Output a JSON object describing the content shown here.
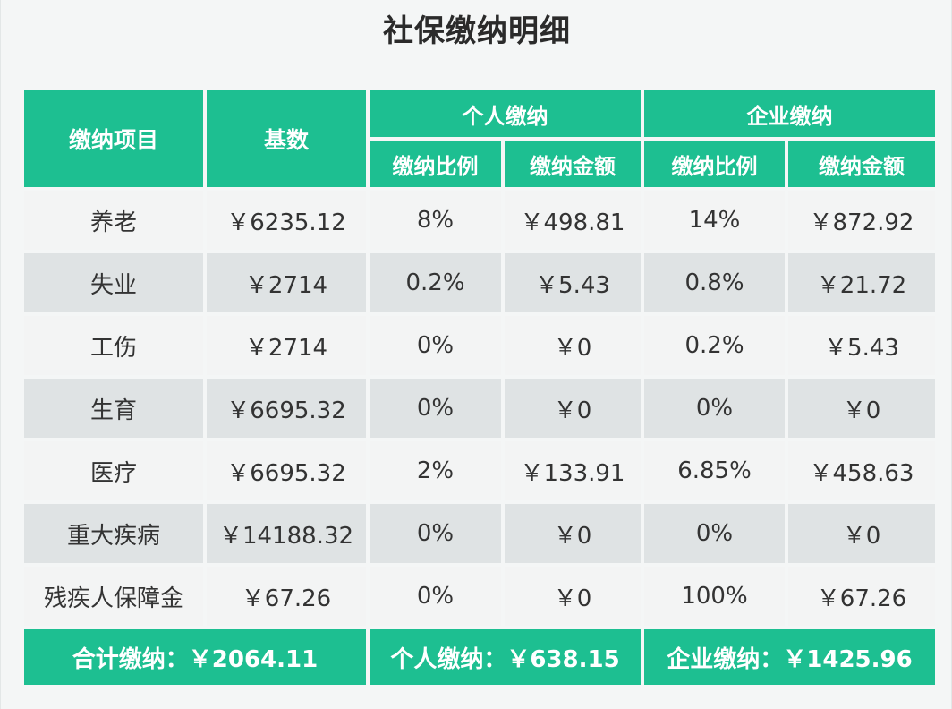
{
  "title": "社保缴纳明细",
  "header": {
    "item": "缴纳项目",
    "base": "基数",
    "personal_group": "个人缴纳",
    "company_group": "企业缴纳",
    "personal_ratio": "缴纳比例",
    "personal_amount": "缴纳金额",
    "company_ratio": "缴纳比例",
    "company_amount": "缴纳金额"
  },
  "rows": [
    {
      "item": "养老",
      "base": "￥6235.12",
      "p_ratio": "8%",
      "p_amount": "￥498.81",
      "c_ratio": "14%",
      "c_amount": "￥872.92"
    },
    {
      "item": "失业",
      "base": "￥2714",
      "p_ratio": "0.2%",
      "p_amount": "￥5.43",
      "c_ratio": "0.8%",
      "c_amount": "￥21.72"
    },
    {
      "item": "工伤",
      "base": "￥2714",
      "p_ratio": "0%",
      "p_amount": "￥0",
      "c_ratio": "0.2%",
      "c_amount": "￥5.43"
    },
    {
      "item": "生育",
      "base": "￥6695.32",
      "p_ratio": "0%",
      "p_amount": "￥0",
      "c_ratio": "0%",
      "c_amount": "￥0"
    },
    {
      "item": "医疗",
      "base": "￥6695.32",
      "p_ratio": "2%",
      "p_amount": "￥133.91",
      "c_ratio": "6.85%",
      "c_amount": "￥458.63"
    },
    {
      "item": "重大疾病",
      "base": "￥14188.32",
      "p_ratio": "0%",
      "p_amount": "￥0",
      "c_ratio": "0%",
      "c_amount": "￥0"
    },
    {
      "item": "残疾人保障金",
      "base": "￥67.26",
      "p_ratio": "0%",
      "p_amount": "￥0",
      "c_ratio": "100%",
      "c_amount": "￥67.26"
    }
  ],
  "footer": {
    "total_label": "合计缴纳：",
    "total_value": "￥2064.11",
    "personal_label": "个人缴纳：",
    "personal_value": "￥638.15",
    "company_label": "企业缴纳：",
    "company_value": "￥1425.96"
  },
  "colors": {
    "header_green": "#1dbf91",
    "row_light": "#f3f4f4",
    "row_dark": "#dfe3e4"
  }
}
